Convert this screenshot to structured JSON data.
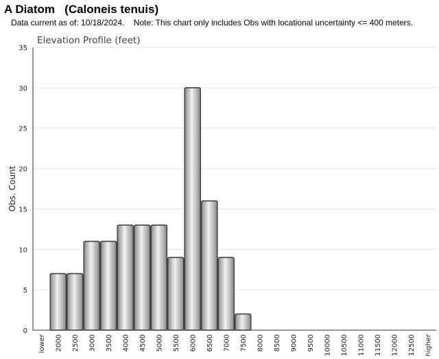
{
  "header": {
    "title": "A Diatom   (Caloneis tenuis)",
    "subtitle": "Data current as of: 10/18/2024.    Note: This chart only includes Obs with locational uncertainty <= 400 meters."
  },
  "chart_data": {
    "type": "bar",
    "title": "Elevation Profile (feet)",
    "xlabel": "",
    "ylabel": "Obs. Count",
    "ylim": [
      0,
      35
    ],
    "yticks": [
      0,
      5,
      10,
      15,
      20,
      25,
      30,
      35
    ],
    "grid": true,
    "categories": [
      "lower",
      "2000",
      "2500",
      "3000",
      "3500",
      "4000",
      "4500",
      "5000",
      "5500",
      "6000",
      "6500",
      "7000",
      "7500",
      "8000",
      "8500",
      "9000",
      "9500",
      "10000",
      "10500",
      "11000",
      "11500",
      "12000",
      "12500",
      "higher"
    ],
    "values": [
      0,
      7,
      7,
      11,
      11,
      13,
      13,
      13,
      9,
      30,
      16,
      9,
      2,
      0,
      0,
      0,
      0,
      0,
      0,
      0,
      0,
      0,
      0,
      0
    ],
    "colors": {
      "bar_light": "#f2f2f2",
      "bar_dark": "#8a8a8a",
      "bar_stroke": "#444444",
      "grid": "#e6e6e6",
      "axis": "#333333"
    }
  }
}
